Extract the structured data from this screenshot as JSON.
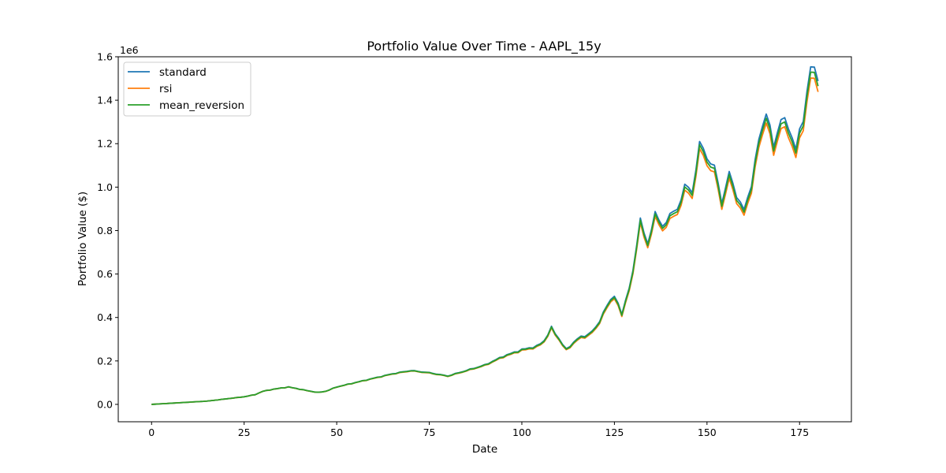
{
  "chart_data": {
    "type": "line",
    "title": "Portfolio Value Over Time - AAPL_15y",
    "xlabel": "Date",
    "ylabel": "Portfolio Value ($)",
    "y_scale_label": "1e6",
    "xlim": [
      -9,
      189
    ],
    "ylim": [
      -0.08,
      1.6
    ],
    "x_ticks": [
      0,
      25,
      50,
      75,
      100,
      125,
      150,
      175
    ],
    "x_tick_labels": [
      "0",
      "25",
      "50",
      "75",
      "100",
      "125",
      "150",
      "175"
    ],
    "y_ticks": [
      0.0,
      0.2,
      0.4,
      0.6,
      0.8,
      1.0,
      1.2,
      1.4,
      1.6
    ],
    "y_tick_labels": [
      "0.0",
      "0.2",
      "0.4",
      "0.6",
      "0.8",
      "1.0",
      "1.2",
      "1.4",
      "1.6"
    ],
    "grid": false,
    "legend_position": "top-left",
    "x_key_values": [
      0,
      5,
      10,
      15,
      20,
      25,
      28,
      30,
      33,
      35,
      37,
      40,
      43,
      45,
      47,
      50,
      55,
      60,
      65,
      70,
      75,
      80,
      85,
      90,
      95,
      100,
      104,
      106,
      108,
      110,
      112,
      115,
      118,
      120,
      123,
      125,
      127,
      130,
      132,
      134,
      136,
      138,
      140,
      142,
      144,
      146,
      148,
      150,
      152,
      154,
      156,
      158,
      160,
      162,
      164,
      166,
      168,
      170,
      172,
      174,
      176,
      178,
      180
    ],
    "base_values": [
      0.0,
      0.005,
      0.01,
      0.015,
      0.025,
      0.035,
      0.045,
      0.06,
      0.07,
      0.075,
      0.08,
      0.07,
      0.06,
      0.055,
      0.06,
      0.08,
      0.1,
      0.12,
      0.14,
      0.155,
      0.145,
      0.13,
      0.155,
      0.18,
      0.22,
      0.25,
      0.265,
      0.29,
      0.35,
      0.3,
      0.25,
      0.3,
      0.32,
      0.35,
      0.45,
      0.5,
      0.41,
      0.6,
      0.85,
      0.72,
      0.88,
      0.8,
      0.87,
      0.88,
      1.0,
      0.96,
      1.19,
      1.12,
      1.08,
      0.92,
      1.05,
      0.95,
      0.88,
      1.0,
      1.2,
      1.33,
      1.17,
      1.3,
      1.26,
      1.16,
      1.3,
      1.53,
      1.49
    ],
    "series": [
      {
        "name": "standard",
        "color": "#1f77b4",
        "scale_amp": 0.016
      },
      {
        "name": "rsi",
        "color": "#ff7f0e",
        "scale_amp": -0.018
      },
      {
        "name": "mean_reversion",
        "color": "#2ca02c",
        "scale_amp": 0.0
      }
    ]
  }
}
